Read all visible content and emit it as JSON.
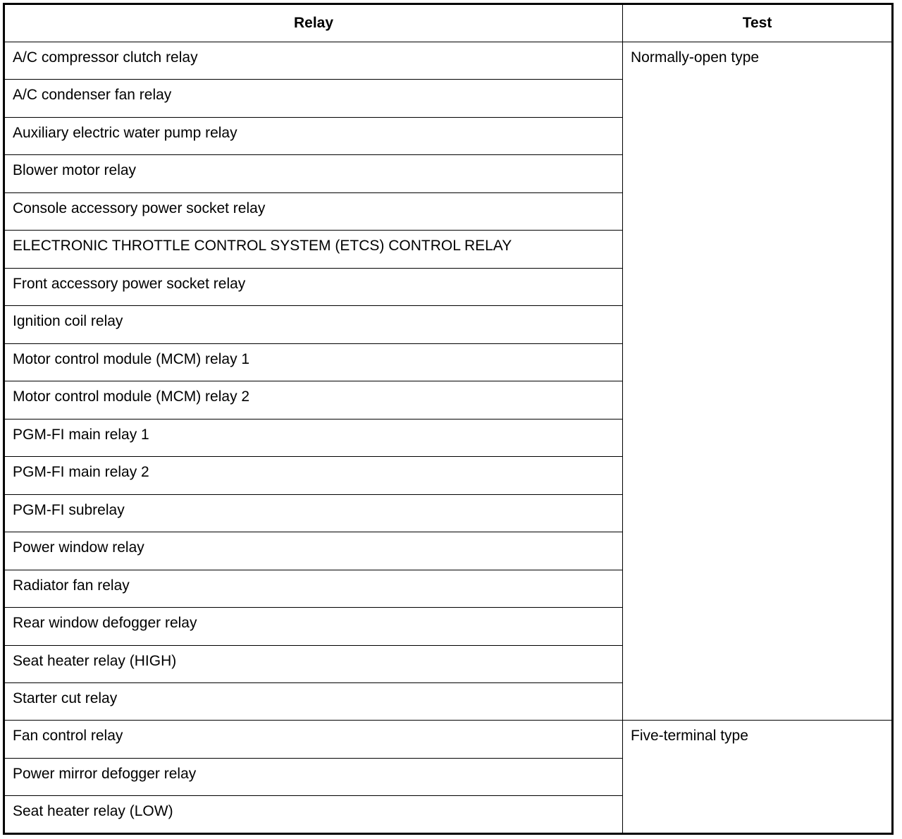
{
  "table": {
    "headers": [
      "Relay",
      "Test"
    ],
    "groups": [
      {
        "test": "Normally-open type",
        "relays": [
          "A/C compressor clutch relay",
          "A/C condenser fan relay",
          "Auxiliary electric water pump relay",
          "Blower motor relay",
          "Console accessory power socket relay",
          "ELECTRONIC THROTTLE CONTROL SYSTEM (ETCS) CONTROL RELAY",
          "Front accessory power socket relay",
          "Ignition coil relay",
          "Motor control module (MCM) relay 1",
          "Motor control module (MCM) relay 2",
          "PGM-FI main relay 1",
          "PGM-FI main relay 2",
          "PGM-FI subrelay",
          "Power window relay",
          "Radiator fan relay",
          "Rear window defogger relay",
          "Seat heater relay (HIGH)",
          "Starter cut relay"
        ]
      },
      {
        "test": "Five-terminal type",
        "relays": [
          "Fan control relay",
          "Power mirror defogger relay",
          "Seat heater relay (LOW)"
        ]
      }
    ]
  }
}
